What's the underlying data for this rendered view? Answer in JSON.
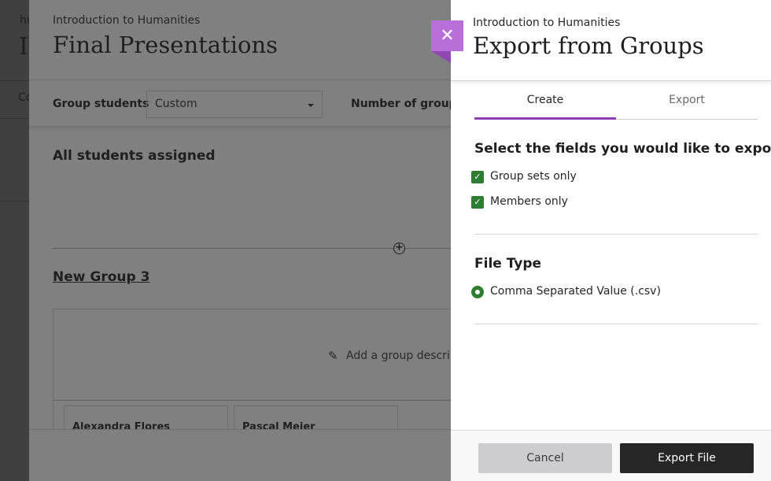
{
  "background_page": {
    "fragments": [
      "hu",
      "I",
      "Co"
    ]
  },
  "groups_panel": {
    "course": "Introduction to Humanities",
    "title": "Final Presentations",
    "group_students_label": "Group students",
    "group_students_value": "Custom",
    "number_of_groups_label": "Number of groups",
    "all_assigned": "All students assigned",
    "group_name": "New Group 3",
    "add_description": "Add a group descrip",
    "members": [
      "Alexandra Flores",
      "Pascal Meier"
    ]
  },
  "export_panel": {
    "course": "Introduction to Humanities",
    "title": "Export from Groups",
    "close_icon": "close-icon",
    "tabs": [
      {
        "label": "Create",
        "active": true
      },
      {
        "label": "Export",
        "active": false
      }
    ],
    "fields_heading": "Select the fields you would like to export",
    "fields": [
      {
        "label": "Group sets only",
        "checked": true
      },
      {
        "label": "Members only",
        "checked": true
      }
    ],
    "file_type_heading": "File Type",
    "file_types": [
      {
        "label": "Comma Separated Value (.csv)",
        "selected": true
      }
    ],
    "cancel_label": "Cancel",
    "export_label": "Export File"
  },
  "colors": {
    "accent": "#8c3fb2",
    "close_bg": "#b86fd8",
    "check": "#2e7d32",
    "primary_button": "#262626"
  }
}
